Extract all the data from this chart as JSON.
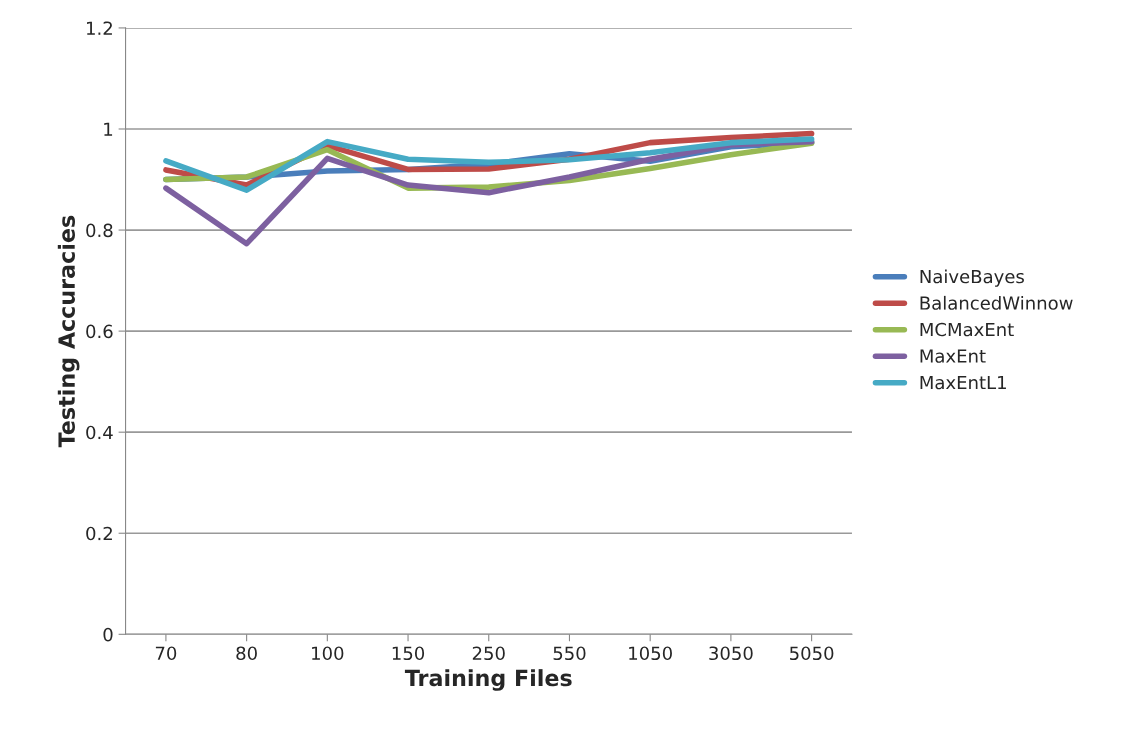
{
  "chart_data": {
    "type": "line",
    "xlabel": "Training Files",
    "ylabel": "Testing Accuracies",
    "categories": [
      "70",
      "80",
      "100",
      "150",
      "250",
      "550",
      "1050",
      "3050",
      "5050"
    ],
    "series": [
      {
        "name": "NaiveBayes",
        "color": "#4a7ebb",
        "values": [
          0.9,
          0.905,
          0.917,
          0.92,
          0.93,
          0.951,
          0.936,
          0.965,
          0.973
        ]
      },
      {
        "name": "BalancedWinnow",
        "color": "#be4b48",
        "values": [
          0.919,
          0.889,
          0.967,
          0.92,
          0.921,
          0.94,
          0.973,
          0.983,
          0.991
        ]
      },
      {
        "name": "MCMaxEnt",
        "color": "#98b954",
        "values": [
          0.9,
          0.905,
          0.959,
          0.883,
          0.885,
          0.898,
          0.922,
          0.949,
          0.972
        ]
      },
      {
        "name": "MaxEnt",
        "color": "#7d60a0",
        "values": [
          0.883,
          0.773,
          0.942,
          0.889,
          0.874,
          0.905,
          0.94,
          0.969,
          0.975
        ]
      },
      {
        "name": "MaxEntL1",
        "color": "#46aac5",
        "values": [
          0.937,
          0.879,
          0.975,
          0.94,
          0.934,
          0.939,
          0.953,
          0.973,
          0.98
        ]
      }
    ],
    "ylim": [
      0,
      1.2
    ],
    "yticks": [
      0,
      0.2,
      0.4,
      0.6,
      0.8,
      1,
      1.2
    ],
    "grid": "y",
    "legend": "right",
    "marker": "none",
    "line_style": "solid"
  }
}
